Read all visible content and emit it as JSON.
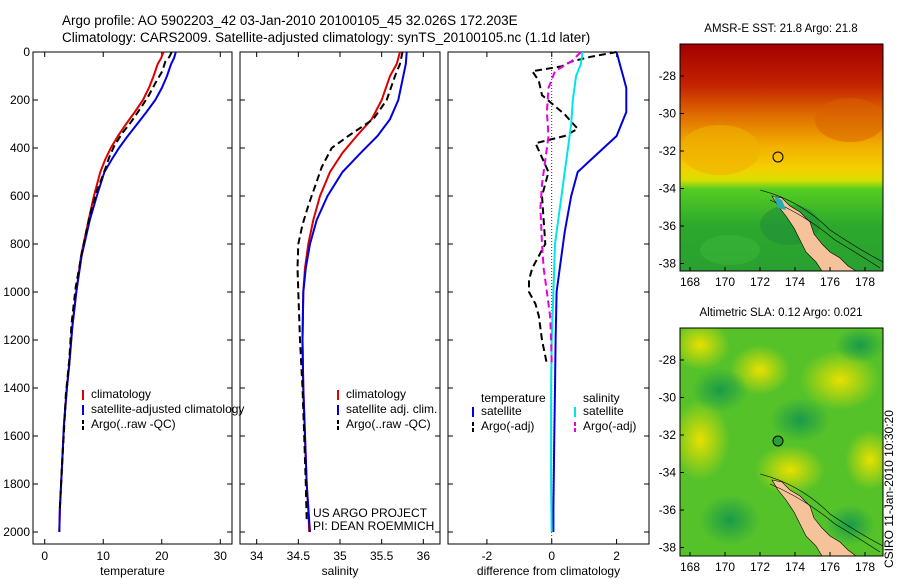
{
  "header": {
    "line1": "Argo profile: AO 5902203_42 03-Jan-2010 20100105_45 32.026S 172.203E",
    "line2": "Climatology: CARS2009. Satellite-adjusted climatology: synTS_20100105.nc (1.1d later)"
  },
  "footer": {
    "project": "US ARGO PROJECT",
    "pi": "PI: DEAN ROEMMICH"
  },
  "timestamp": "CSIRO 11-Jan-2010 10:30:20",
  "colors": {
    "clim": "#dd0000",
    "sat": "#0000dd",
    "argo": "#000000",
    "sat_sal": "#00e6e6",
    "argo_sal": "#e600e6"
  },
  "chart_data": [
    {
      "type": "line",
      "id": "temperature",
      "xlabel": "temperature",
      "xlim": [
        -2,
        32
      ],
      "xticks": [
        0,
        10,
        20,
        30
      ],
      "ylim": [
        2050,
        0
      ],
      "yticks": [
        0,
        200,
        400,
        600,
        800,
        1000,
        1200,
        1400,
        1600,
        1800,
        2000
      ],
      "legend": [
        "climatology",
        "satellite-adjusted climatology",
        "Argo(..raw -QC)"
      ],
      "series": [
        {
          "name": "climatology",
          "color": "#dd0000",
          "dash": "",
          "x": [
            20.3,
            19.9,
            19.3,
            18.6,
            17.8,
            16.8,
            15.4,
            13.9,
            12.5,
            11.3,
            10.3,
            9.5,
            8.4,
            7.5,
            6.2,
            5.4,
            4.7,
            4.2,
            3.8,
            3.3,
            3.0,
            2.8,
            2.6,
            2.5
          ],
          "y": [
            0,
            25,
            50,
            100,
            150,
            200,
            250,
            300,
            350,
            400,
            450,
            500,
            600,
            700,
            850,
            1000,
            1150,
            1300,
            1400,
            1550,
            1700,
            1800,
            1900,
            2000
          ]
        },
        {
          "name": "satellite-adjusted climatology",
          "color": "#0000dd",
          "dash": "",
          "x": [
            22.4,
            22.1,
            21.6,
            20.9,
            20.0,
            18.9,
            17.4,
            15.8,
            14.2,
            12.7,
            11.4,
            10.2,
            8.9,
            7.7,
            6.3,
            5.4,
            4.7,
            4.2,
            3.8,
            3.3,
            3.0,
            2.8,
            2.6,
            2.5
          ],
          "y": [
            0,
            25,
            50,
            100,
            150,
            200,
            250,
            300,
            350,
            400,
            450,
            500,
            600,
            700,
            850,
            1000,
            1150,
            1300,
            1400,
            1550,
            1700,
            1800,
            1900,
            2000
          ]
        },
        {
          "name": "Argo(..raw -QC)",
          "color": "#000000",
          "dash": "7,4",
          "x": [
            21.7,
            21.3,
            20.6,
            20.1,
            18.9,
            17.8,
            16.5,
            14.8,
            13.2,
            11.9,
            11.0,
            10.3,
            8.9,
            7.7,
            6.4,
            5.3,
            4.6,
            4.2,
            3.6,
            3.3,
            3.0,
            2.8,
            2.6
          ],
          "y": [
            0,
            20,
            40,
            80,
            130,
            180,
            230,
            290,
            340,
            390,
            440,
            490,
            580,
            680,
            830,
            980,
            1130,
            1280,
            1430,
            1580,
            1700,
            1800,
            1900
          ]
        }
      ]
    },
    {
      "type": "line",
      "id": "salinity",
      "xlabel": "salinity",
      "xlim": [
        33.8,
        36.2
      ],
      "xticks": [
        34,
        34.5,
        35,
        35.5,
        36
      ],
      "ylim": [
        2050,
        0
      ],
      "legend": [
        "climatology",
        "satellite adj. clim.",
        "Argo(..raw -QC)"
      ],
      "series": [
        {
          "name": "climatology",
          "color": "#dd0000",
          "dash": "",
          "x": [
            35.72,
            35.68,
            35.6,
            35.5,
            35.38,
            35.2,
            35.03,
            34.88,
            34.76,
            34.68,
            34.62,
            34.58,
            34.56,
            34.55,
            34.56,
            34.58,
            34.6,
            34.62,
            34.63
          ],
          "y": [
            0,
            50,
            100,
            200,
            280,
            350,
            420,
            500,
            600,
            700,
            800,
            900,
            1000,
            1200,
            1400,
            1600,
            1800,
            1900,
            2000
          ]
        },
        {
          "name": "satellite adj. clim.",
          "color": "#0000dd",
          "dash": "",
          "x": [
            35.8,
            35.79,
            35.76,
            35.7,
            35.6,
            35.45,
            35.25,
            35.03,
            34.85,
            34.72,
            34.64,
            34.59,
            34.56,
            34.55,
            34.56,
            34.58,
            34.6,
            34.62,
            34.64
          ],
          "y": [
            0,
            50,
            100,
            200,
            280,
            350,
            420,
            500,
            600,
            700,
            800,
            900,
            1000,
            1200,
            1400,
            1600,
            1800,
            1900,
            2000
          ]
        },
        {
          "name": "Argo(..raw -QC)",
          "color": "#000000",
          "dash": "7,4",
          "x": [
            35.75,
            35.72,
            35.66,
            35.56,
            35.4,
            35.1,
            34.9,
            34.78,
            34.7,
            34.62,
            34.55,
            34.5,
            34.49,
            34.5,
            34.52,
            34.55,
            34.57,
            34.59,
            34.6
          ],
          "y": [
            0,
            50,
            100,
            200,
            280,
            350,
            400,
            480,
            560,
            640,
            720,
            800,
            900,
            1000,
            1200,
            1400,
            1600,
            1800,
            1950
          ]
        }
      ]
    },
    {
      "type": "line",
      "id": "difference",
      "xlabel": "difference from climatology",
      "xlim": [
        -3.2,
        3.0
      ],
      "xticks": [
        -2,
        0,
        2
      ],
      "ylim": [
        2050,
        0
      ],
      "legend_temperature": {
        "title": "temperature",
        "items": [
          "satellite",
          "Argo(-adj)"
        ]
      },
      "legend_salinity": {
        "title": "salinity",
        "items": [
          "satellite",
          "Argo(-adj)"
        ]
      },
      "series": [
        {
          "name": "satellite",
          "group": "temperature",
          "color": "#0000dd",
          "dash": "",
          "x": [
            2.0,
            2.1,
            2.2,
            2.3,
            2.3,
            2.3,
            2.0,
            1.6,
            1.2,
            0.8,
            0.6,
            0.4,
            0.25,
            0.15,
            0.12,
            0.1,
            0.08,
            0.06,
            0.05,
            0.05
          ],
          "y": [
            0,
            50,
            100,
            150,
            200,
            250,
            350,
            400,
            450,
            500,
            600,
            750,
            900,
            1000,
            1200,
            1400,
            1600,
            1800,
            1900,
            2000
          ]
        },
        {
          "name": "Argo(-adj)",
          "group": "temperature",
          "color": "#000000",
          "dash": "7,4",
          "x": [
            2.0,
            1.2,
            0.6,
            0.3,
            -0.6,
            -0.4,
            -0.3,
            0.4,
            0.8,
            0.4,
            -0.5,
            -0.1,
            -0.3,
            -0.2,
            -0.6,
            -0.7,
            -0.7,
            -0.5,
            -0.4,
            -0.3,
            -0.15
          ],
          "y": [
            0,
            20,
            40,
            60,
            80,
            120,
            180,
            260,
            320,
            350,
            380,
            500,
            600,
            800,
            900,
            950,
            1000,
            1050,
            1100,
            1200,
            1300
          ]
        },
        {
          "name": "satellite",
          "group": "salinity",
          "color": "#00e6e6",
          "dash": "",
          "x": [
            0.95,
            0.9,
            0.75,
            0.65,
            0.6,
            0.5,
            0.4,
            0.3,
            0.2,
            0.1,
            0.05,
            0.0,
            -0.02,
            -0.02,
            -0.02,
            -0.01,
            0.0,
            0.0
          ],
          "y": [
            0,
            50,
            100,
            200,
            300,
            400,
            500,
            600,
            700,
            800,
            1000,
            1200,
            1400,
            1600,
            1800,
            1900,
            2000,
            2000
          ]
        },
        {
          "name": "Argo(-adj)",
          "group": "salinity",
          "color": "#e600e6",
          "dash": "7,4",
          "x": [
            0.9,
            0.6,
            0.1,
            -0.1,
            -0.15,
            -0.1,
            -0.2,
            -0.3,
            -0.35,
            -0.3,
            -0.25,
            -0.15,
            -0.05,
            -0.02,
            0.0
          ],
          "y": [
            0,
            40,
            80,
            150,
            250,
            350,
            450,
            550,
            650,
            800,
            900,
            1000,
            1100,
            1200,
            1300
          ]
        }
      ]
    }
  ],
  "maps": [
    {
      "id": "sst",
      "title": "AMSR-E SST: 21.8 Argo: 21.8",
      "xticks": [
        "168",
        "170",
        "172",
        "174",
        "176",
        "178"
      ],
      "yticks": [
        "-28",
        "-30",
        "-32",
        "-34",
        "-36",
        "-38"
      ]
    },
    {
      "id": "sla",
      "title": "Altimetric SLA: 0.12 Argo: 0.021",
      "xticks": [
        "168",
        "170",
        "172",
        "174",
        "176",
        "178"
      ],
      "yticks": [
        "-28",
        "-30",
        "-32",
        "-34",
        "-36",
        "-38"
      ]
    }
  ]
}
